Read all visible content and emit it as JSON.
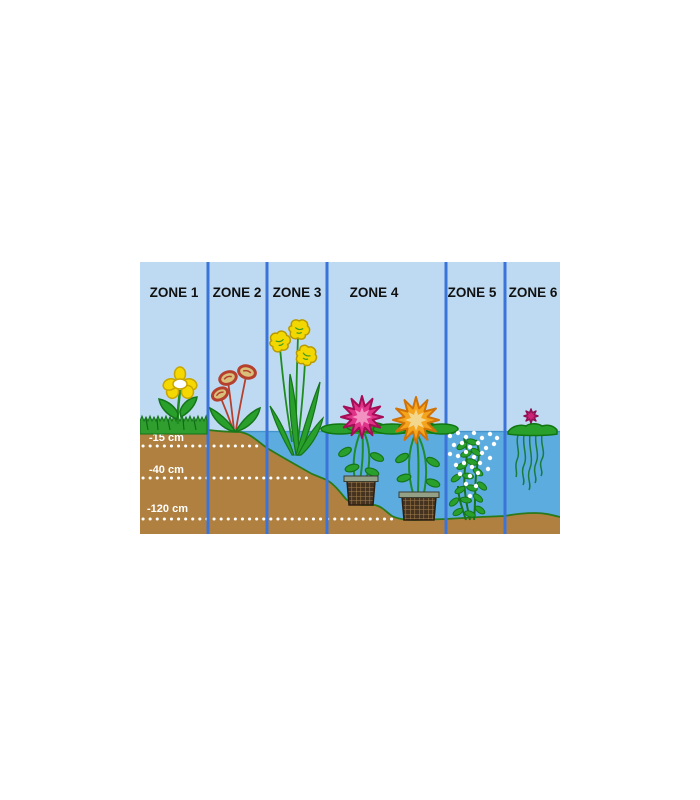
{
  "diagram": {
    "description_name": "pond-planting-zones-diagram",
    "zones": [
      {
        "label": "ZONE 1"
      },
      {
        "label": "ZONE 2"
      },
      {
        "label": "ZONE 3"
      },
      {
        "label": "ZONE 4"
      },
      {
        "label": "ZONE 5"
      },
      {
        "label": "ZONE 6"
      }
    ],
    "depth_markers": [
      {
        "label": "-15 cm"
      },
      {
        "label": "-40 cm"
      },
      {
        "label": "-120 cm"
      }
    ],
    "colors": {
      "page_background": "#ffffff",
      "sky": "#bedaf2",
      "water": "#5cace0",
      "water_edge": "#4494cc",
      "soil": "#b08040",
      "soil_edge": "#2a7a1a",
      "zone_divider": "#3b74d8",
      "foliage": "#2aa02c",
      "foliage_outline": "#15751a",
      "grass": "#2f9e2f",
      "zone_label_text": "#111111",
      "depth_label_text": "#ffffff",
      "depth_dotted_line": "#ffffff",
      "flower_yellow": "#f5d800",
      "flower_yellow_outline": "#c8a500",
      "flower_red_brown_rim": "#b5402e",
      "flower_red_brown_center": "#d9c07a",
      "iris_yellow": "#f2d800",
      "flower_pink": "#e0348a",
      "flower_pink_outline": "#a50d56",
      "flower_pink_inner": "#f291c1",
      "flower_orange": "#f5a41e",
      "flower_orange_outline": "#cf7208",
      "flower_orange_inner": "#f3d78c",
      "flower_magenta": "#cc2277",
      "basket_rim": "#93a086",
      "basket_mesh_dark": "#46331f",
      "basket_mesh_light": "#a07c4e",
      "bubbles": "#ffffff",
      "roots": "#1b7a3e"
    }
  }
}
